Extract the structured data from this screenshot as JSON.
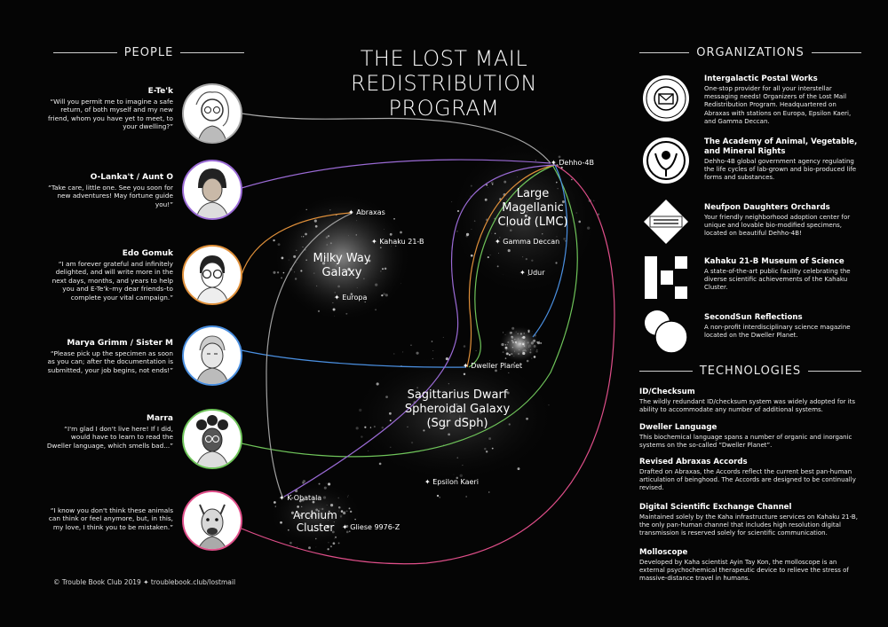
{
  "title_line1": "THE LOST MAIL",
  "title_line2": "REDISTRIBUTION PROGRAM",
  "headers": {
    "people": "PEOPLE",
    "organizations": "ORGANIZATIONS",
    "technologies": "TECHNOLOGIES"
  },
  "people": [
    {
      "name": "E-Te'k",
      "quote": "“Will you permit me to imagine a safe return, of both myself and my new friend, whom you have yet to meet, to your dwelling?”"
    },
    {
      "name": "O-Lanka't / Aunt O",
      "quote": "“Take care, little one. See you soon for new adventures! May fortune guide you!”"
    },
    {
      "name": "Edo Gomuk",
      "quote": "“I am forever grateful and infinitely delighted, and will write more in the next days, months, and years to help you and E-Te'k–my dear friends–to complete your vital campaign.”"
    },
    {
      "name": "Marya Grimm / Sister M",
      "quote": "“Please pick up the specimen as soon as you can; after the documentation is submitted, your job begins, not ends!”"
    },
    {
      "name": "Marra",
      "quote": "“I'm glad I don't live here! If I did, would have to learn to read the Dweller language, which smells bad...”"
    },
    {
      "name": "",
      "quote": "“I know you don't think these animals can think or feel anymore, but, in this, my love, I think you to be mistaken.”"
    }
  ],
  "organizations": [
    {
      "name": "Intergalactic Postal Works",
      "desc": "One-stop provider for all your interstellar messaging needs! Organizers of the Lost Mail Redistribution Program. Headquartered on Abraxas with stations on Europa, Epsilon Kaeri, and Gamma Deccan.",
      "logo_text": "INTERGALACTIC POSTAL WORKS"
    },
    {
      "name": "The Academy of Animal, Vegetable, and Mineral Rights",
      "desc": "Dehho-4B global government agency regulating the life cycles of lab-grown and bio-produced life forms and substances."
    },
    {
      "name": "Neufpon Daughters Orchards",
      "desc": "Your friendly neighborhood adoption center for unique and lovable bio-modified specimens, located on beautiful Dehho-4B!",
      "logo_text": "NEUFPON DAUGHTERS ORCHARDS"
    },
    {
      "name": "Kahaku 21-B Museum of Science",
      "desc": "A state-of-the-art public facility celebrating the diverse scientific achievements of the Kahaku Cluster."
    },
    {
      "name": "SecondSun Reflections",
      "desc": "A non-profit interdisciplinary science magazine located on the Dweller Planet."
    }
  ],
  "technologies": [
    {
      "name": "ID/Checksum",
      "desc": "The wildly redundant ID/checksum system was widely adopted for its ability to accommodate any number of additional systems."
    },
    {
      "name": "Dweller Language",
      "desc": "This biochemical language spans a number of organic and inorganic systems on the so-called “Dweller Planet”."
    },
    {
      "name": "Revised Abraxas Accords",
      "desc": "Drafted on Abraxas, the Accords reflect the current best pan-human articulation of beinghood. The Accords are designed to be continually revised."
    },
    {
      "name": "Digital Scientific Exchange Channel",
      "desc": "Maintained solely by the Kaha infrastructure services on Kahaku 21-B, the only pan-human channel that includes high resolution digital transmission is reserved solely for scientific communication."
    },
    {
      "name": "Molloscope",
      "desc": "Developed by Kaha scientist Ayin Tay Kon, the molloscope is an external psychochemical therapeutic device to relieve the stress of massive-distance travel in humans."
    }
  ],
  "regions": {
    "milky_way": [
      "Milky Way",
      "Galaxy"
    ],
    "lmc": [
      "Large",
      "Magellanic",
      "Cloud (LMC)"
    ],
    "sgr": [
      "Sagittarius Dwarf",
      "Spheroidal Galaxy",
      "(Sgr dSph)"
    ],
    "archium": [
      "Archium",
      "Cluster"
    ]
  },
  "places": {
    "dehho": "Dehho-4B",
    "abraxas": "Abraxas",
    "kahaku": "Kahaku 21-B",
    "gamma": "Gamma Deccan",
    "udur": "Udur",
    "europa": "Europa",
    "dweller": "Dweller Planet",
    "epsilon": "Epsilon Kaeri",
    "kobatala": "K-Obatala",
    "gliese": "Gliese 9976-Z"
  },
  "footer": "© Trouble Book Club 2019 ✦ troublebook.club/lostmail",
  "colors": {
    "purple": "#9b6bd6",
    "orange": "#e0903a",
    "blue": "#4a8fe0",
    "green": "#6fc45a",
    "pink": "#e04f8a",
    "grey": "#a8a8a8"
  }
}
